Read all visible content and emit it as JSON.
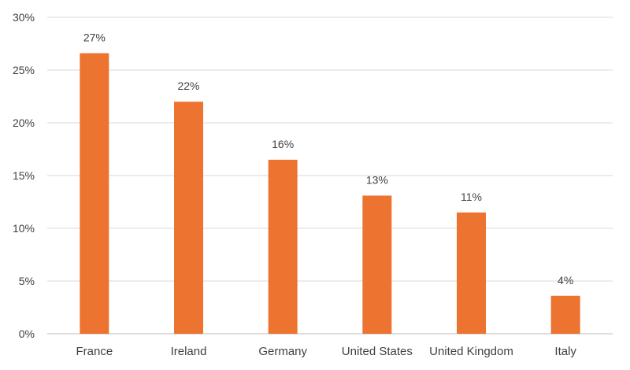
{
  "chart_data": {
    "type": "bar",
    "title": "",
    "xlabel": "",
    "ylabel": "",
    "categories": [
      "France",
      "Ireland",
      "Germany",
      "United States",
      "United Kingdom",
      "Italy"
    ],
    "values": [
      26.6,
      22.0,
      16.5,
      13.1,
      11.5,
      3.6
    ],
    "data_labels": [
      "27%",
      "22%",
      "16%",
      "13%",
      "11%",
      "4%"
    ],
    "yticks": [
      0,
      5,
      10,
      15,
      20,
      25,
      30
    ],
    "ytick_labels": [
      "0%",
      "5%",
      "10%",
      "15%",
      "20%",
      "25%",
      "30%"
    ],
    "ylim": [
      0,
      30
    ],
    "grid": true,
    "legend": "none",
    "bar_color": "#ED7331"
  }
}
